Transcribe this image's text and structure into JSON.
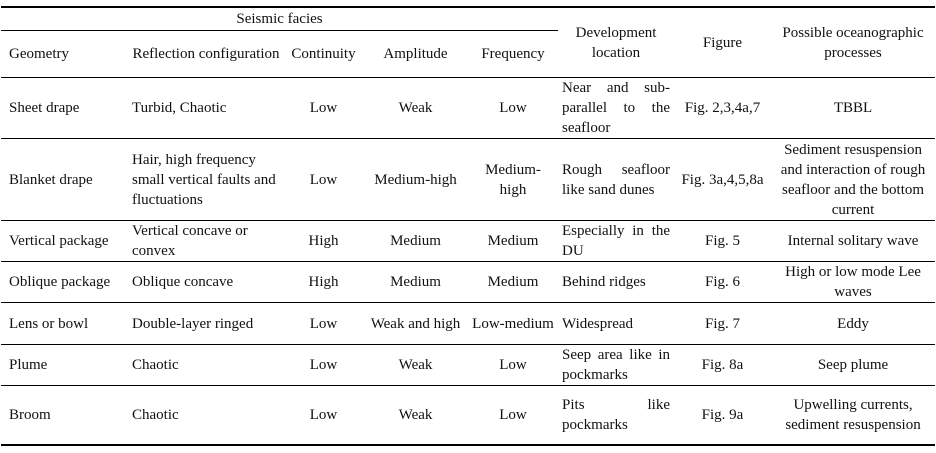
{
  "table": {
    "header": {
      "group": "Seismic facies",
      "columns": [
        "Geometry",
        "Reflection configuration",
        "Continuity",
        "Amplitude",
        "Frequency",
        "Development location",
        "Figure",
        "Possible oceanographic processes"
      ]
    },
    "rows": [
      [
        "Sheet drape",
        "Turbid, Chaotic",
        "Low",
        "Weak",
        "Low",
        "Near and sub-parallel to the seafloor",
        "Fig. 2,3,4a,7",
        "TBBL"
      ],
      [
        "Blanket drape",
        "Hair, high frequency small vertical faults and fluctuations",
        "Low",
        "Medium-high",
        "Medium-high",
        "Rough seafloor like sand dunes",
        "Fig. 3a,4,5,8a",
        "Sediment resuspension and interaction of rough seafloor and the bottom current"
      ],
      [
        "Vertical package",
        "Vertical concave or convex",
        "High",
        "Medium",
        "Medium",
        "Especially in the DU",
        "Fig. 5",
        "Internal solitary wave"
      ],
      [
        "Oblique package",
        "Oblique concave",
        "High",
        "Medium",
        "Medium",
        "Behind ridges",
        "Fig. 6",
        "High or low mode Lee waves"
      ],
      [
        "Lens or bowl",
        "Double-layer ringed",
        "Low",
        "Weak and high",
        "Low-medium",
        "Widespread",
        "Fig. 7",
        "Eddy"
      ],
      [
        "Plume",
        "Chaotic",
        "Low",
        "Weak",
        "Low",
        "Seep area like in pockmarks",
        "Fig. 8a",
        "Seep plume"
      ],
      [
        "Broom",
        "Chaotic",
        "Low",
        "Weak",
        "Low",
        "Pits like pockmarks",
        "Fig. 9a",
        "Upwelling currents, sediment resuspension"
      ]
    ]
  }
}
